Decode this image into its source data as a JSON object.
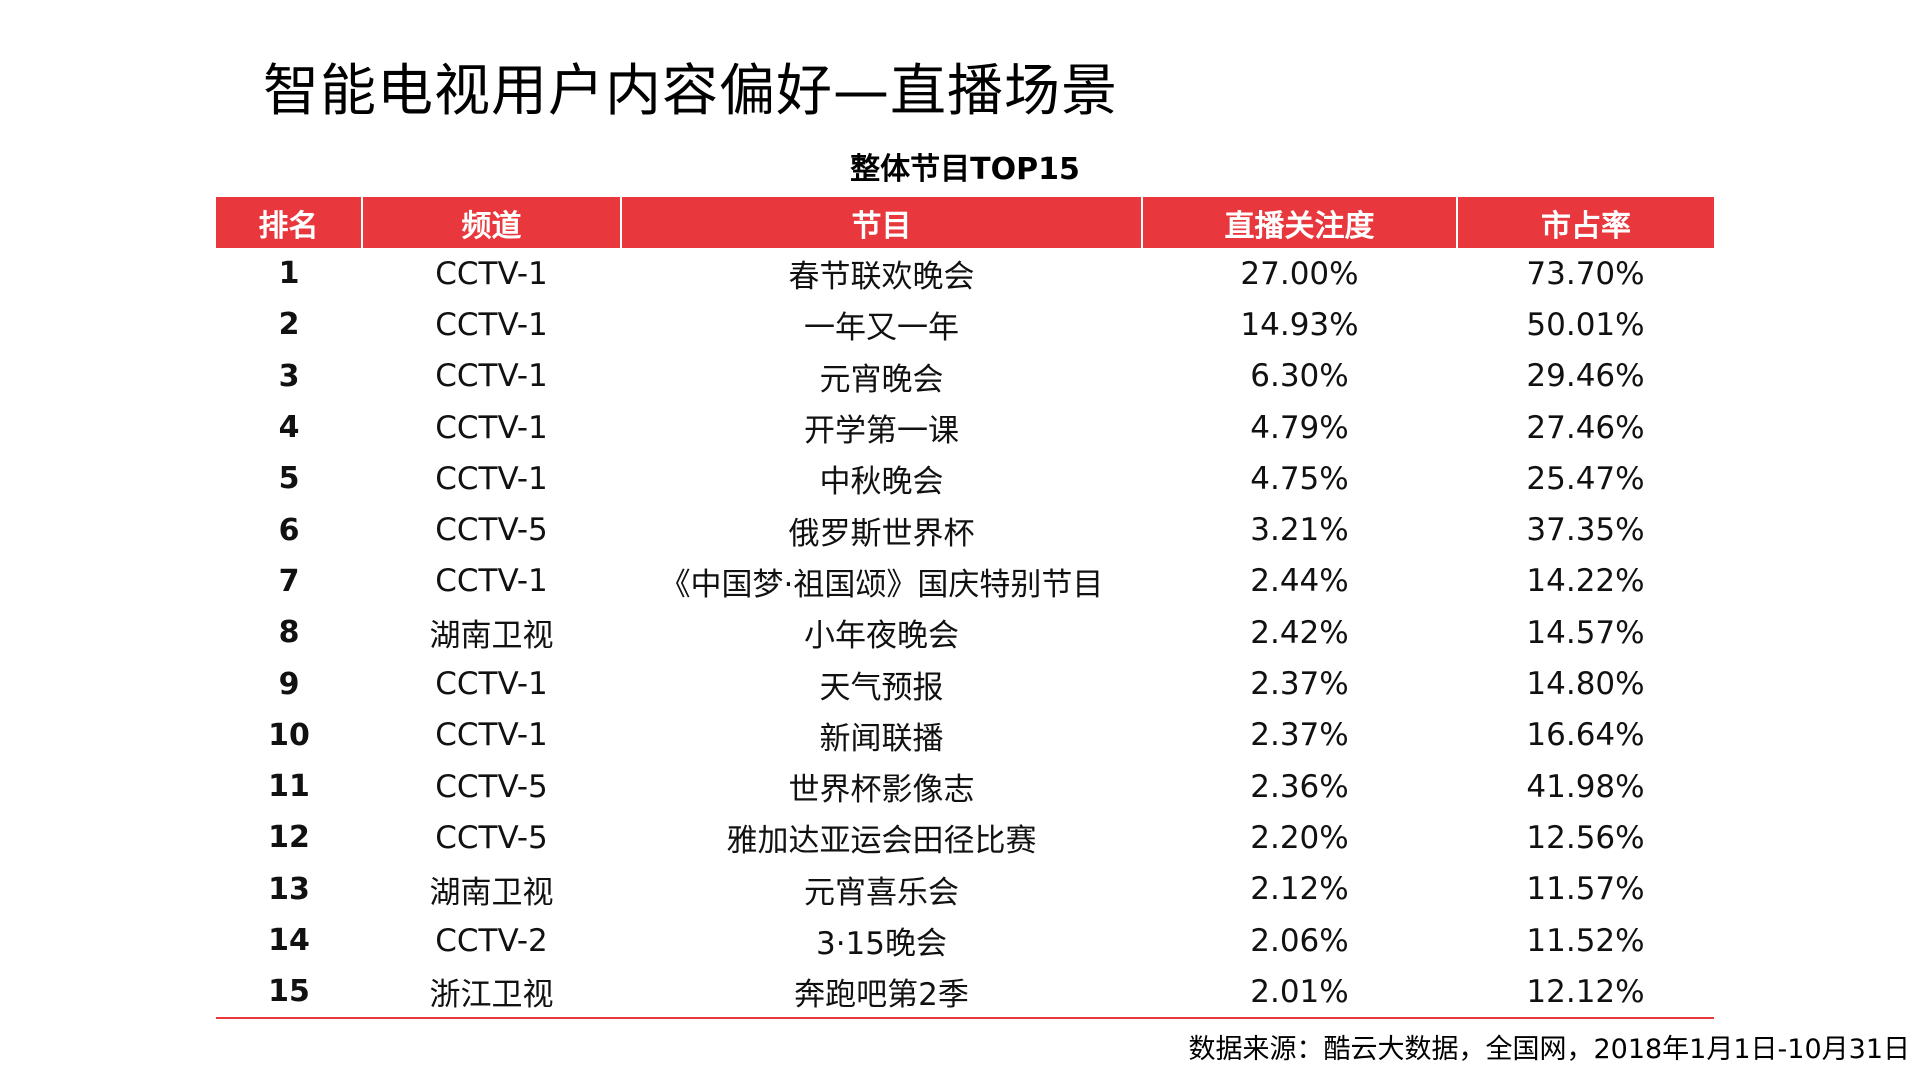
{
  "page": {
    "title": "智能电视用户内容偏好—直播场景",
    "accent_color": "#e8383d",
    "source": "数据来源：酷云大数据，全国网，2018年1月1日-10月31日"
  },
  "chart_data": {
    "type": "table",
    "title": "整体节目TOP15",
    "columns": [
      "排名",
      "频道",
      "节目",
      "直播关注度",
      "市占率"
    ],
    "rows": [
      [
        "1",
        "CCTV-1",
        "春节联欢晚会",
        "27.00%",
        "73.70%"
      ],
      [
        "2",
        "CCTV-1",
        "一年又一年",
        "14.93%",
        "50.01%"
      ],
      [
        "3",
        "CCTV-1",
        "元宵晚会",
        "6.30%",
        "29.46%"
      ],
      [
        "4",
        "CCTV-1",
        "开学第一课",
        "4.79%",
        "27.46%"
      ],
      [
        "5",
        "CCTV-1",
        "中秋晚会",
        "4.75%",
        "25.47%"
      ],
      [
        "6",
        "CCTV-5",
        "俄罗斯世界杯",
        "3.21%",
        "37.35%"
      ],
      [
        "7",
        "CCTV-1",
        "《中国梦·祖国颂》国庆特别节目",
        "2.44%",
        "14.22%"
      ],
      [
        "8",
        "湖南卫视",
        "小年夜晚会",
        "2.42%",
        "14.57%"
      ],
      [
        "9",
        "CCTV-1",
        "天气预报",
        "2.37%",
        "14.80%"
      ],
      [
        "10",
        "CCTV-1",
        "新闻联播",
        "2.37%",
        "16.64%"
      ],
      [
        "11",
        "CCTV-5",
        "世界杯影像志",
        "2.36%",
        "41.98%"
      ],
      [
        "12",
        "CCTV-5",
        "雅加达亚运会田径比赛",
        "2.20%",
        "12.56%"
      ],
      [
        "13",
        "湖南卫视",
        "元宵喜乐会",
        "2.12%",
        "11.57%"
      ],
      [
        "14",
        "CCTV-2",
        "3·15晚会",
        "2.06%",
        "11.52%"
      ],
      [
        "15",
        "浙江卫视",
        "奔跑吧第2季",
        "2.01%",
        "12.12%"
      ]
    ]
  }
}
